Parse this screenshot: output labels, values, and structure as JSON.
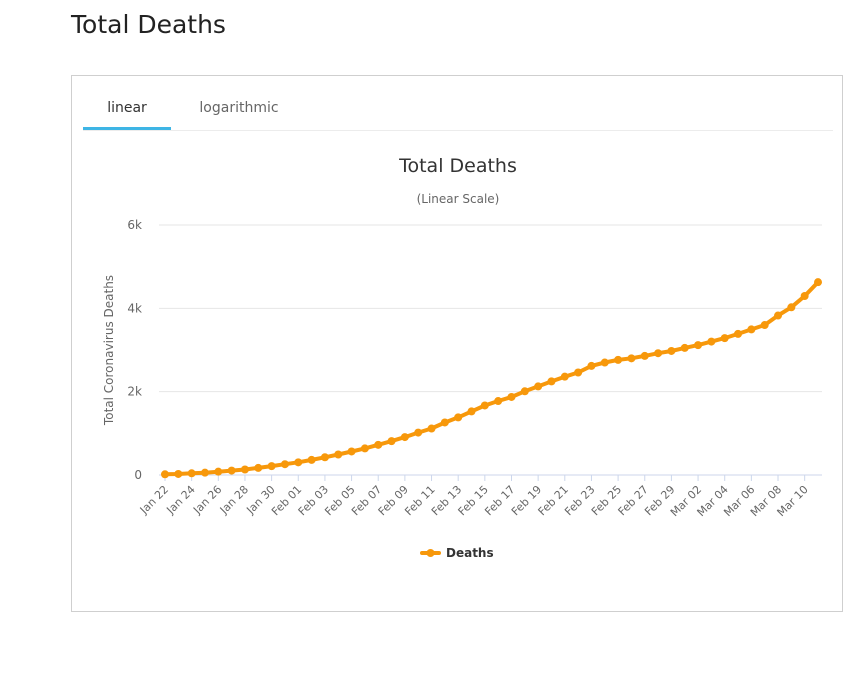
{
  "page": {
    "title": "Total Deaths"
  },
  "tabs": [
    {
      "label": "linear",
      "active": true
    },
    {
      "label": "logarithmic",
      "active": false
    }
  ],
  "colors": {
    "series": "#f7980b",
    "tab_active": "#3eb5e5",
    "grid": "#e6e6e6"
  },
  "chart_data": {
    "type": "line",
    "title": "Total Deaths",
    "subtitle": "(Linear Scale)",
    "ylabel": "Total Coronavirus Deaths",
    "xlabel": "",
    "ylim": [
      0,
      6000
    ],
    "yticks": [
      "0",
      "2k",
      "4k",
      "6k"
    ],
    "grid": true,
    "legend_position": "bottom-center",
    "x": [
      "Jan 22",
      "Jan 23",
      "Jan 24",
      "Jan 25",
      "Jan 26",
      "Jan 27",
      "Jan 28",
      "Jan 29",
      "Jan 30",
      "Jan 31",
      "Feb 01",
      "Feb 02",
      "Feb 03",
      "Feb 04",
      "Feb 05",
      "Feb 06",
      "Feb 07",
      "Feb 08",
      "Feb 09",
      "Feb 10",
      "Feb 11",
      "Feb 12",
      "Feb 13",
      "Feb 14",
      "Feb 15",
      "Feb 16",
      "Feb 17",
      "Feb 18",
      "Feb 19",
      "Feb 20",
      "Feb 21",
      "Feb 22",
      "Feb 23",
      "Feb 24",
      "Feb 25",
      "Feb 26",
      "Feb 27",
      "Feb 28",
      "Feb 29",
      "Mar 01",
      "Mar 02",
      "Mar 03",
      "Mar 04",
      "Mar 05",
      "Mar 06",
      "Mar 07",
      "Mar 08",
      "Mar 09",
      "Mar 10",
      "Mar 11"
    ],
    "xtick_labels": [
      "Jan 22",
      "Jan 24",
      "Jan 26",
      "Jan 28",
      "Jan 30",
      "Feb 01",
      "Feb 03",
      "Feb 05",
      "Feb 07",
      "Feb 09",
      "Feb 11",
      "Feb 13",
      "Feb 15",
      "Feb 17",
      "Feb 19",
      "Feb 21",
      "Feb 23",
      "Feb 25",
      "Feb 27",
      "Feb 29",
      "Mar 02",
      "Mar 04",
      "Mar 06",
      "Mar 08",
      "Mar 10"
    ],
    "series": [
      {
        "name": "Deaths",
        "values": [
          17,
          25,
          41,
          56,
          80,
          106,
          132,
          170,
          213,
          259,
          304,
          362,
          426,
          492,
          565,
          638,
          724,
          813,
          910,
          1018,
          1115,
          1261,
          1383,
          1526,
          1669,
          1775,
          1873,
          2009,
          2126,
          2247,
          2360,
          2460,
          2618,
          2699,
          2763,
          2800,
          2858,
          2923,
          2977,
          3050,
          3117,
          3202,
          3285,
          3387,
          3494,
          3599,
          3827,
          4025,
          4296,
          4628
        ]
      }
    ]
  }
}
